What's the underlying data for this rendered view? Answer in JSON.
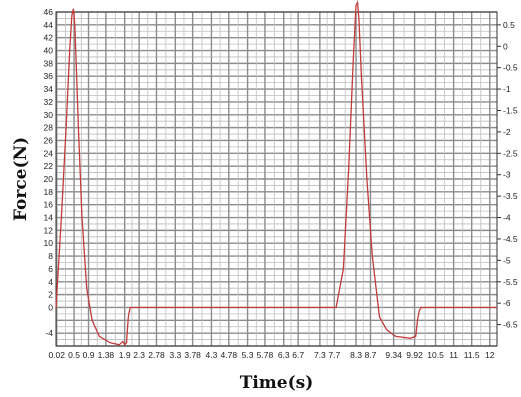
{
  "chart_data": {
    "type": "line",
    "ylabel": "Force(N)",
    "xlabel": "Time(s)",
    "ylim": [
      -6,
      46
    ],
    "y2lim": [
      -7,
      0.8
    ],
    "y_ticks": [
      "46",
      "44",
      "42",
      "40",
      "38",
      "36",
      "34",
      "32",
      "30",
      "28",
      "26",
      "24",
      "22",
      "20",
      "18",
      "16",
      "14",
      "12",
      "10",
      "8",
      "6",
      "4",
      "2",
      "0",
      "-4"
    ],
    "y_tick_values": [
      46,
      44,
      42,
      40,
      38,
      36,
      34,
      32,
      30,
      28,
      26,
      24,
      22,
      20,
      18,
      16,
      14,
      12,
      10,
      8,
      6,
      4,
      2,
      0,
      -4
    ],
    "y2_ticks": [
      "0.5",
      "0",
      "-0.5",
      "-1",
      "-1.5",
      "-2",
      "-2.5",
      "-3",
      "-3.5",
      "-4",
      "-4.5",
      "-5",
      "-5.5",
      "-6",
      "-6.5"
    ],
    "y2_tick_values": [
      0.5,
      0,
      -0.5,
      -1,
      -1.5,
      -2,
      -2.5,
      -3,
      -3.5,
      -4,
      -4.5,
      -5,
      -5.5,
      -6,
      -6.5
    ],
    "x_ticks": [
      "0.02",
      "0.5",
      "0.9",
      "1.38",
      "1.9",
      "2.3",
      "2.78",
      "3.3",
      "3.78",
      "4.3",
      "4.78",
      "5.3",
      "5.78",
      "6.3",
      "6.7",
      "7.3",
      "7.7",
      "8.3",
      "8.7",
      "9.34",
      "9.92",
      "10.5",
      "11",
      "11.5",
      "12"
    ],
    "x_tick_values": [
      0.02,
      0.5,
      0.9,
      1.38,
      1.9,
      2.3,
      2.78,
      3.3,
      3.78,
      4.3,
      4.78,
      5.3,
      5.78,
      6.3,
      6.7,
      7.3,
      7.7,
      8.3,
      8.7,
      9.34,
      9.92,
      10.5,
      11,
      11.5,
      12
    ],
    "xlim": [
      0,
      12.2
    ],
    "grid": true,
    "series": [
      {
        "color": "#c33a3a",
        "x": [
          0.0,
          0.15,
          0.28,
          0.38,
          0.44,
          0.48,
          0.52,
          0.56,
          0.62,
          0.72,
          0.85,
          1.0,
          1.2,
          1.5,
          1.75,
          1.85,
          1.9,
          1.95,
          2.0,
          2.05,
          2.1,
          2.2,
          7.75,
          7.95,
          8.1,
          8.22,
          8.3,
          8.34,
          8.38,
          8.45,
          8.6,
          8.75,
          8.95,
          9.15,
          9.4,
          9.8,
          9.95,
          10.0,
          10.05,
          10.1,
          10.2,
          12.2
        ],
        "y": [
          0.0,
          14.0,
          28.0,
          40.0,
          45.5,
          46.5,
          44.0,
          38.0,
          28.0,
          14.0,
          3.0,
          -2.0,
          -4.5,
          -5.5,
          -5.8,
          -5.3,
          -5.8,
          -5.5,
          -1.5,
          0.0,
          0.0,
          0.0,
          0.0,
          6.0,
          22.0,
          38.0,
          47.0,
          47.5,
          45.0,
          36.0,
          20.0,
          8.0,
          -1.5,
          -3.5,
          -4.5,
          -4.8,
          -4.5,
          -2.0,
          -0.5,
          0.0,
          0.0,
          0.0
        ]
      }
    ]
  }
}
